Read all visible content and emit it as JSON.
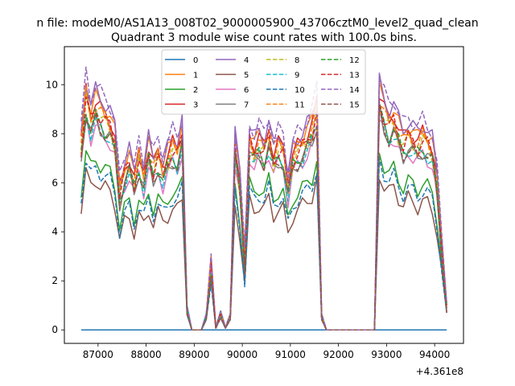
{
  "chart_data": {
    "type": "line",
    "suptitle": "n file: modeM0/AS1A13_008T02_9000005900_43706cztM0_level2_quad_clean",
    "title": "Quadrant 3 module wise count rates with 100.0s bins.",
    "xlabel": "",
    "ylabel": "",
    "offset_text": "+4.361e8",
    "xlim": [
      86300,
      94600
    ],
    "ylim": [
      -0.55,
      11.55
    ],
    "xticks": [
      87000,
      88000,
      89000,
      90000,
      91000,
      92000,
      93000,
      94000
    ],
    "xtick_labels": [
      "87000",
      "88000",
      "89000",
      "90000",
      "91000",
      "92000",
      "93000",
      "94000"
    ],
    "yticks": [
      0,
      2,
      4,
      6,
      8,
      10
    ],
    "ytick_labels": [
      "0",
      "2",
      "4",
      "6",
      "8",
      "10"
    ],
    "grid": false,
    "legend_position": "upper center",
    "series": [
      {
        "name": "0",
        "color": "#1f77b4",
        "dash": "solid",
        "base": "zero",
        "values_note": "flat at 0"
      },
      {
        "name": "1",
        "color": "#ff7f0e",
        "dash": "solid",
        "mult": 1.12
      },
      {
        "name": "2",
        "color": "#2ca02c",
        "dash": "solid",
        "mult": 0.82
      },
      {
        "name": "3",
        "color": "#d62728",
        "dash": "solid",
        "mult": 1.1
      },
      {
        "name": "4",
        "color": "#9467bd",
        "dash": "solid",
        "mult": 1.15
      },
      {
        "name": "5",
        "color": "#8c564b",
        "dash": "solid",
        "mult": 0.72
      },
      {
        "name": "6",
        "color": "#e377c2",
        "dash": "solid",
        "mult": 0.98
      },
      {
        "name": "7",
        "color": "#7f7f7f",
        "dash": "solid",
        "mult": 1.0
      },
      {
        "name": "8",
        "color": "#bcbd22",
        "dash": "dashed",
        "mult": 1.05
      },
      {
        "name": "9",
        "color": "#17becf",
        "dash": "dashed",
        "mult": 1.0
      },
      {
        "name": "10",
        "color": "#1f77b4",
        "dash": "dashed",
        "mult": 0.78
      },
      {
        "name": "11",
        "color": "#ff7f0e",
        "dash": "dashed",
        "mult": 1.08
      },
      {
        "name": "12",
        "color": "#2ca02c",
        "dash": "dashed",
        "mult": 1.02
      },
      {
        "name": "13",
        "color": "#d62728",
        "dash": "dashed",
        "mult": 1.06
      },
      {
        "name": "14",
        "color": "#9467bd",
        "dash": "dashed",
        "mult": 1.18
      },
      {
        "name": "15",
        "color": "#8c564b",
        "dash": "dashed",
        "mult": 1.0
      }
    ],
    "x": [
      86650,
      86750,
      86850,
      86950,
      87050,
      87150,
      87250,
      87350,
      87450,
      87550,
      87650,
      87750,
      87850,
      87950,
      88050,
      88150,
      88250,
      88350,
      88450,
      88550,
      88650,
      88750,
      88850,
      88950,
      89050,
      89150,
      89250,
      89350,
      89450,
      89550,
      89650,
      89750,
      89850,
      89950,
      90050,
      90150,
      90250,
      90350,
      90450,
      90550,
      90650,
      90750,
      90850,
      90950,
      91050,
      91150,
      91250,
      91350,
      91450,
      91550,
      91650,
      91750,
      91850,
      91950,
      92050,
      92150,
      92250,
      92350,
      92450,
      92550,
      92650,
      92750,
      92850,
      92950,
      93050,
      93150,
      93250,
      93350,
      93450,
      93550,
      93650,
      93750,
      93850,
      93950,
      94050,
      94150,
      94250
    ],
    "base_profile": [
      7.0,
      8.9,
      8.0,
      8.5,
      8.2,
      8.0,
      7.8,
      7.2,
      5.2,
      6.0,
      6.4,
      5.6,
      6.5,
      5.8,
      6.8,
      6.1,
      6.6,
      6.0,
      6.5,
      6.9,
      6.7,
      7.4,
      0.9,
      0.0,
      0.0,
      0.0,
      0.6,
      2.5,
      0.1,
      0.7,
      0.1,
      0.6,
      7.0,
      5.5,
      2.6,
      7.2,
      6.8,
      7.1,
      6.8,
      7.4,
      6.5,
      6.9,
      6.8,
      5.4,
      6.5,
      6.8,
      7.0,
      7.3,
      7.6,
      8.4,
      0.6,
      0.0,
      0.0,
      0.0,
      0.0,
      0.0,
      0.0,
      0.0,
      0.0,
      0.0,
      0.0,
      0.0,
      8.8,
      8.2,
      7.8,
      8.0,
      7.5,
      7.1,
      7.4,
      7.2,
      7.0,
      7.3,
      7.1,
      6.8,
      5.6,
      3.1,
      1.0
    ]
  }
}
